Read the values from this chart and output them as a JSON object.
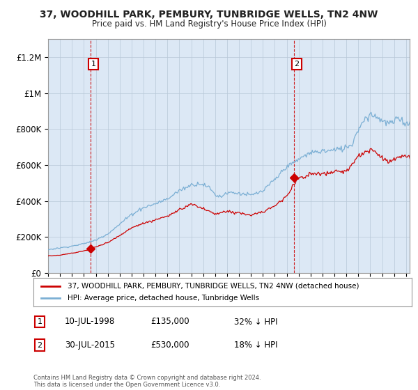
{
  "title": "37, WOODHILL PARK, PEMBURY, TUNBRIDGE WELLS, TN2 4NW",
  "subtitle": "Price paid vs. HM Land Registry's House Price Index (HPI)",
  "hpi_color": "#7bafd4",
  "price_color": "#cc0000",
  "annotation_box_color": "#cc0000",
  "background_color": "#ffffff",
  "plot_bg_color": "#dce8f5",
  "ylabel": "",
  "ylim": [
    0,
    1300000
  ],
  "yticks": [
    0,
    200000,
    400000,
    600000,
    800000,
    1000000,
    1200000
  ],
  "ytick_labels": [
    "£0",
    "£200K",
    "£400K",
    "£600K",
    "£800K",
    "£1M",
    "£1.2M"
  ],
  "legend_entry1": "37, WOODHILL PARK, PEMBURY, TUNBRIDGE WELLS, TN2 4NW (detached house)",
  "legend_entry2": "HPI: Average price, detached house, Tunbridge Wells",
  "annotation1_label": "1",
  "annotation1_date": "10-JUL-1998",
  "annotation1_price": "£135,000",
  "annotation1_hpi": "32% ↓ HPI",
  "annotation1_year": 1998.54,
  "annotation1_value": 135000,
  "annotation2_label": "2",
  "annotation2_date": "30-JUL-2015",
  "annotation2_price": "£530,000",
  "annotation2_hpi": "18% ↓ HPI",
  "annotation2_year": 2015.58,
  "annotation2_value": 530000,
  "footer": "Contains HM Land Registry data © Crown copyright and database right 2024.\nThis data is licensed under the Open Government Licence v3.0.",
  "xmin": 1995.0,
  "xmax": 2025.3
}
